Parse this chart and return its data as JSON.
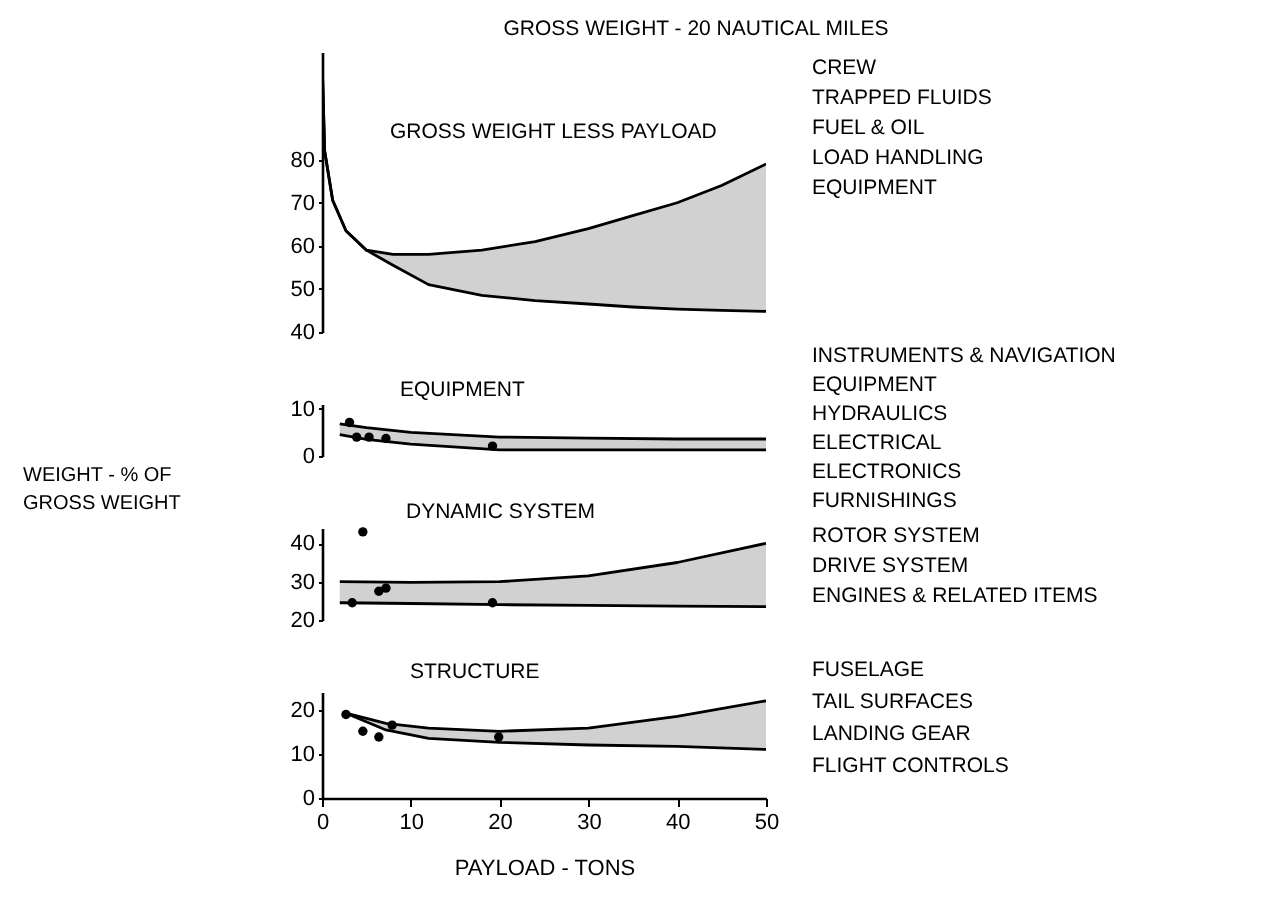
{
  "chart_data": [
    {
      "type": "line",
      "title": "GROSS WEIGHT - 20 NAUTICAL MILES",
      "annotations": [
        "GROSS WEIGHT LESS PAYLOAD",
        "CREW",
        "TRAPPED FLUIDS",
        "FUEL & OIL",
        "LOAD HANDLING",
        "EQUIPMENT"
      ],
      "xlim": [
        0,
        50
      ],
      "ylim": [
        40,
        105
      ],
      "yticks": [
        40,
        50,
        60,
        70,
        80
      ],
      "tick_labels": "y",
      "line_style": "solid",
      "series": [
        {
          "color": "#000000",
          "x": [
            0,
            0.3,
            1.2,
            2.7,
            5,
            8,
            12,
            18,
            24,
            30,
            35,
            40,
            45,
            50
          ],
          "values": [
            104,
            82,
            70.6,
            63.5,
            59,
            58,
            58,
            59,
            61,
            64,
            67,
            70,
            74,
            79
          ],
          "lower": [
            104,
            82,
            70.6,
            63.5,
            59,
            55.5,
            51,
            48.5,
            47.3,
            46.5,
            45.8,
            45.3,
            45,
            44.8
          ],
          "upper": [
            104,
            82,
            70.6,
            63.5,
            59,
            58,
            58,
            59,
            61,
            64,
            67,
            70,
            74,
            79
          ]
        },
        {
          "color": "#000000",
          "x": [
            0,
            0.3,
            1.2,
            2.7,
            5,
            8,
            12,
            18,
            24,
            30,
            35,
            40,
            45,
            50
          ],
          "values": [
            104,
            82,
            70.6,
            63.5,
            59,
            55.5,
            51,
            48.5,
            47.3,
            46.5,
            45.8,
            45.3,
            45,
            44.8
          ]
        }
      ]
    },
    {
      "type": "line",
      "ylabel": "WEIGHT - % OF GROSS WEIGHT",
      "annotations": [
        "EQUIPMENT",
        "INSTRUMENTS & NAVIGATION",
        "EQUIPMENT",
        "HYDRAULICS",
        "ELECTRICAL",
        "ELECTRONICS",
        "FURNISHINGS"
      ],
      "xlim": [
        0,
        50
      ],
      "ylim": [
        0,
        11
      ],
      "yticks": [
        0,
        10
      ],
      "tick_labels": "y",
      "series": [
        {
          "color": "#000000",
          "x": [
            2,
            5,
            10,
            20,
            30,
            40,
            50
          ],
          "values": [
            6.8,
            6,
            5,
            4,
            3.8,
            3.6,
            3.6
          ],
          "lower": [
            4.5,
            3.5,
            2.5,
            1.3,
            1.3,
            1.3,
            1.3
          ],
          "upper": [
            6.8,
            6,
            5,
            4,
            3.8,
            3.6,
            3.6
          ]
        },
        {
          "color": "#000000",
          "x": [
            2,
            5,
            10,
            20,
            30,
            40,
            50
          ],
          "values": [
            4.5,
            3.5,
            2.5,
            1.3,
            1.3,
            1.3,
            1.3
          ]
        },
        {
          "type": "scatter",
          "marker": "circle",
          "color": "#000000",
          "x": [
            3.1,
            3.9,
            5.3,
            7.2,
            19.2
          ],
          "values": [
            7.1,
            4,
            4,
            3.7,
            2.1
          ]
        }
      ]
    },
    {
      "type": "line",
      "annotations": [
        "DYNAMIC SYSTEM",
        "ROTOR SYSTEM",
        "DRIVE SYSTEM",
        "ENGINES & RELATED ITEMS"
      ],
      "xlim": [
        0,
        50
      ],
      "ylim": [
        20,
        44
      ],
      "yticks": [
        20,
        30,
        40
      ],
      "tick_labels": "y",
      "series": [
        {
          "color": "#000000",
          "x": [
            2,
            10,
            20,
            30,
            40,
            50
          ],
          "values": [
            30,
            29.8,
            30,
            31.5,
            35,
            40
          ],
          "lower": [
            24.5,
            24.3,
            24,
            23.8,
            23.6,
            23.5
          ],
          "upper": [
            30,
            29.8,
            30,
            31.5,
            35,
            40
          ]
        },
        {
          "color": "#000000",
          "x": [
            2,
            10,
            20,
            30,
            40,
            50
          ],
          "values": [
            24.5,
            24.3,
            24,
            23.8,
            23.6,
            23.5
          ]
        },
        {
          "type": "scatter",
          "marker": "circle",
          "color": "#000000",
          "x": [
            3.4,
            4.6,
            6.4,
            7.2,
            19.2
          ],
          "values": [
            24.5,
            43,
            27.5,
            28.3,
            24.5
          ]
        }
      ]
    },
    {
      "type": "line",
      "xlabel": "PAYLOAD - TONS",
      "annotations": [
        "STRUCTURE",
        "FUSELAGE",
        "TAIL SURFACES",
        "LANDING GEAR",
        "FLIGHT CONTROLS"
      ],
      "xlim": [
        0,
        50
      ],
      "xticks": [
        0,
        10,
        20,
        30,
        40,
        50
      ],
      "ylim": [
        0,
        24
      ],
      "yticks": [
        0,
        10,
        20
      ],
      "series": [
        {
          "color": "#000000",
          "x": [
            2.7,
            7.2,
            12,
            20,
            30,
            40,
            50
          ],
          "values": [
            19.2,
            16.9,
            15.8,
            15.1,
            15.8,
            18.5,
            22
          ],
          "lower": [
            19.2,
            15.4,
            13.5,
            12.6,
            12,
            11.7,
            11
          ],
          "upper": [
            19.2,
            16.9,
            15.8,
            15.1,
            15.8,
            18.5,
            22
          ]
        },
        {
          "color": "#000000",
          "x": [
            2.7,
            7.2,
            12,
            20,
            30,
            40,
            50
          ],
          "values": [
            19.2,
            15.4,
            13.5,
            12.6,
            12,
            11.7,
            11
          ]
        },
        {
          "type": "scatter",
          "marker": "circle",
          "color": "#000000",
          "x": [
            2.7,
            4.6,
            6.4,
            7.9,
            19.9
          ],
          "values": [
            18.9,
            15.1,
            13.8,
            16.5,
            13.8
          ]
        }
      ]
    }
  ]
}
